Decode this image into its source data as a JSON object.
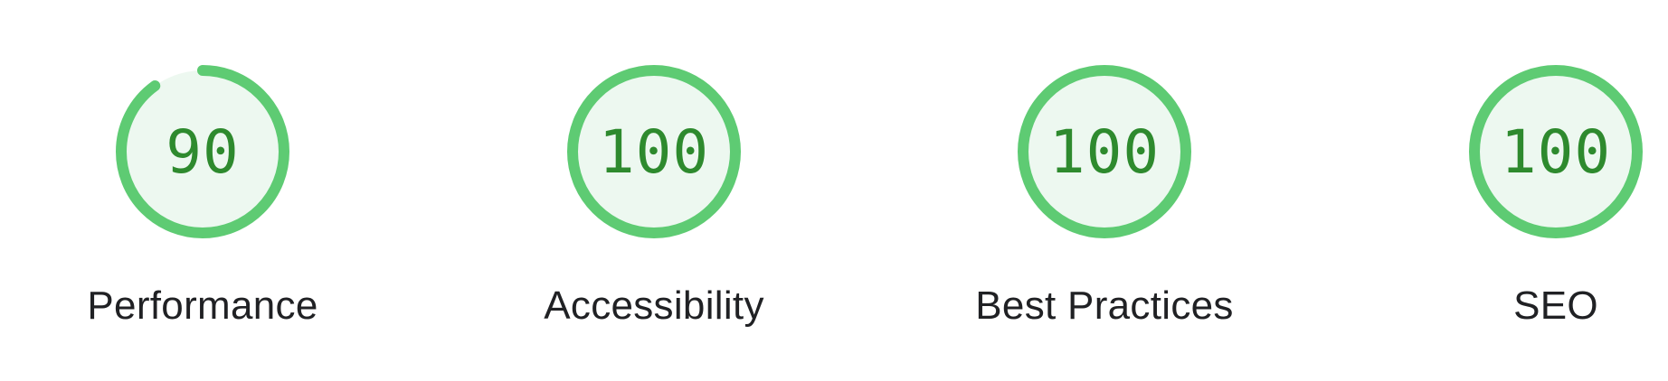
{
  "colors": {
    "pass_ring": "#5ecb73",
    "pass_fill": "#edf8f0",
    "pass_text": "#2e8a2e",
    "label_text": "#202124"
  },
  "gauges": [
    {
      "id": "performance",
      "value": "90",
      "score": 0.9,
      "label": "Performance"
    },
    {
      "id": "accessibility",
      "value": "100",
      "score": 1.0,
      "label": "Accessibility"
    },
    {
      "id": "best-practices",
      "value": "100",
      "score": 1.0,
      "label": "Best Practices"
    },
    {
      "id": "seo",
      "value": "100",
      "score": 1.0,
      "label": "SEO"
    }
  ]
}
